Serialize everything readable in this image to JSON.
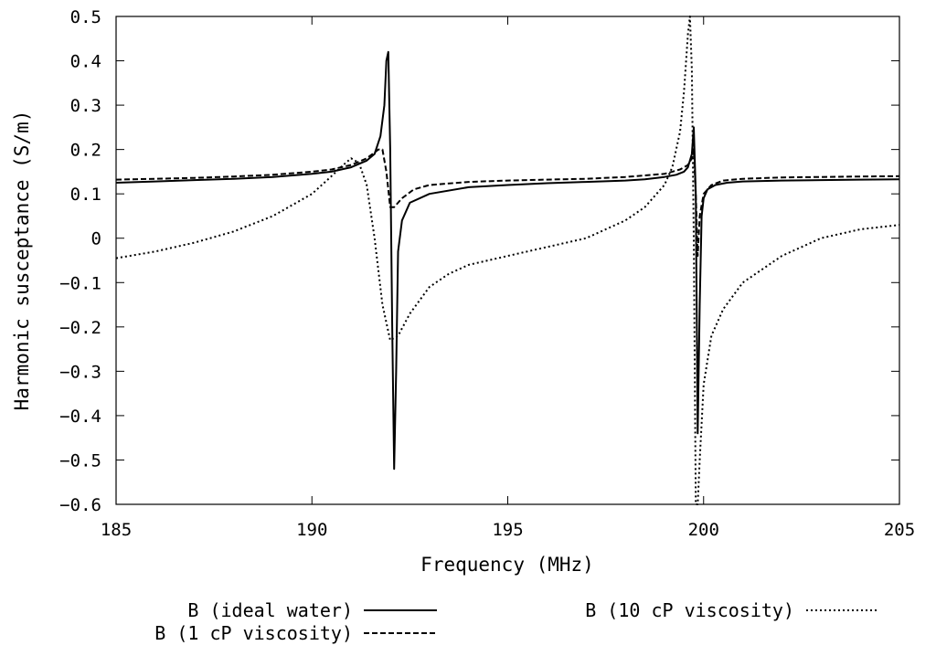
{
  "chart_data": {
    "type": "line",
    "title": "",
    "xlabel": "Frequency (MHz)",
    "ylabel": "Harmonic susceptance (S/m)",
    "xlim": [
      185,
      205
    ],
    "ylim": [
      -0.6,
      0.5
    ],
    "xticks": [
      185,
      190,
      195,
      200,
      205
    ],
    "xtick_labels": [
      "185",
      "190",
      "195",
      "200",
      "205"
    ],
    "yticks": [
      0.5,
      0.4,
      0.3,
      0.2,
      0.1,
      0,
      -0.1,
      -0.2,
      -0.3,
      -0.4,
      -0.5,
      -0.6
    ],
    "ytick_labels": [
      "0.5",
      "0.4",
      "0.3",
      "0.2",
      "0.1",
      "0",
      "−0.1",
      "−0.2",
      "−0.3",
      "−0.4",
      "−0.5",
      "−0.6"
    ],
    "grid": false,
    "legend_position": "bottom",
    "series": [
      {
        "name": "B (ideal water)",
        "style": "solid",
        "x": [
          185,
          186,
          187,
          188,
          189,
          190,
          190.5,
          191,
          191.4,
          191.6,
          191.75,
          191.85,
          191.9,
          191.95,
          192.0,
          192.05,
          192.1,
          192.15,
          192.2,
          192.3,
          192.5,
          193,
          194,
          195,
          196,
          197,
          198,
          198.5,
          199,
          199.3,
          199.5,
          199.6,
          199.7,
          199.75,
          199.8,
          199.85,
          199.9,
          199.95,
          200.0,
          200.1,
          200.3,
          200.6,
          201,
          202,
          203,
          204,
          205
        ],
        "y": [
          0.125,
          0.128,
          0.131,
          0.134,
          0.138,
          0.145,
          0.15,
          0.16,
          0.175,
          0.19,
          0.23,
          0.3,
          0.4,
          0.42,
          0.2,
          -0.2,
          -0.52,
          -0.3,
          -0.03,
          0.04,
          0.08,
          0.1,
          0.115,
          0.12,
          0.124,
          0.127,
          0.13,
          0.133,
          0.138,
          0.143,
          0.15,
          0.16,
          0.19,
          0.25,
          0.1,
          -0.44,
          -0.15,
          0.05,
          0.09,
          0.11,
          0.12,
          0.125,
          0.128,
          0.13,
          0.131,
          0.132,
          0.133
        ]
      },
      {
        "name": "B (1 cP viscosity)",
        "style": "dashed",
        "x": [
          185,
          186,
          187,
          188,
          189,
          190,
          190.5,
          191,
          191.4,
          191.7,
          191.8,
          191.9,
          192.0,
          192.1,
          192.3,
          192.6,
          193,
          194,
          195,
          196,
          197,
          198,
          199,
          199.4,
          199.6,
          199.7,
          199.75,
          199.8,
          199.85,
          199.9,
          200.0,
          200.2,
          200.5,
          201,
          202,
          203,
          204,
          205
        ],
        "y": [
          0.132,
          0.134,
          0.136,
          0.139,
          0.143,
          0.15,
          0.155,
          0.165,
          0.18,
          0.2,
          0.2,
          0.15,
          0.07,
          0.07,
          0.09,
          0.11,
          0.12,
          0.127,
          0.13,
          0.132,
          0.134,
          0.138,
          0.145,
          0.155,
          0.165,
          0.18,
          0.2,
          0.1,
          -0.04,
          0.05,
          0.1,
          0.12,
          0.13,
          0.134,
          0.137,
          0.138,
          0.139,
          0.14
        ]
      },
      {
        "name": "B (10 cP viscosity)",
        "style": "dotted",
        "x": [
          185,
          186,
          187,
          188,
          189,
          190,
          190.5,
          190.8,
          191.0,
          191.2,
          191.4,
          191.6,
          191.8,
          192.0,
          192.2,
          192.5,
          193,
          193.5,
          194,
          195,
          196,
          197,
          198,
          198.5,
          199,
          199.2,
          199.4,
          199.5,
          199.6,
          199.65,
          199.7,
          199.75,
          199.8,
          199.85,
          199.9,
          200.0,
          200.2,
          200.5,
          201,
          202,
          203,
          204,
          205
        ],
        "y": [
          -0.045,
          -0.03,
          -0.01,
          0.015,
          0.05,
          0.1,
          0.14,
          0.165,
          0.18,
          0.17,
          0.12,
          0.0,
          -0.15,
          -0.23,
          -0.22,
          -0.17,
          -0.11,
          -0.08,
          -0.06,
          -0.04,
          -0.02,
          0.0,
          0.04,
          0.07,
          0.12,
          0.16,
          0.24,
          0.33,
          0.46,
          0.5,
          0.38,
          0.0,
          -0.6,
          -0.6,
          -0.5,
          -0.33,
          -0.22,
          -0.16,
          -0.1,
          -0.04,
          0.0,
          0.02,
          0.03
        ]
      }
    ]
  }
}
